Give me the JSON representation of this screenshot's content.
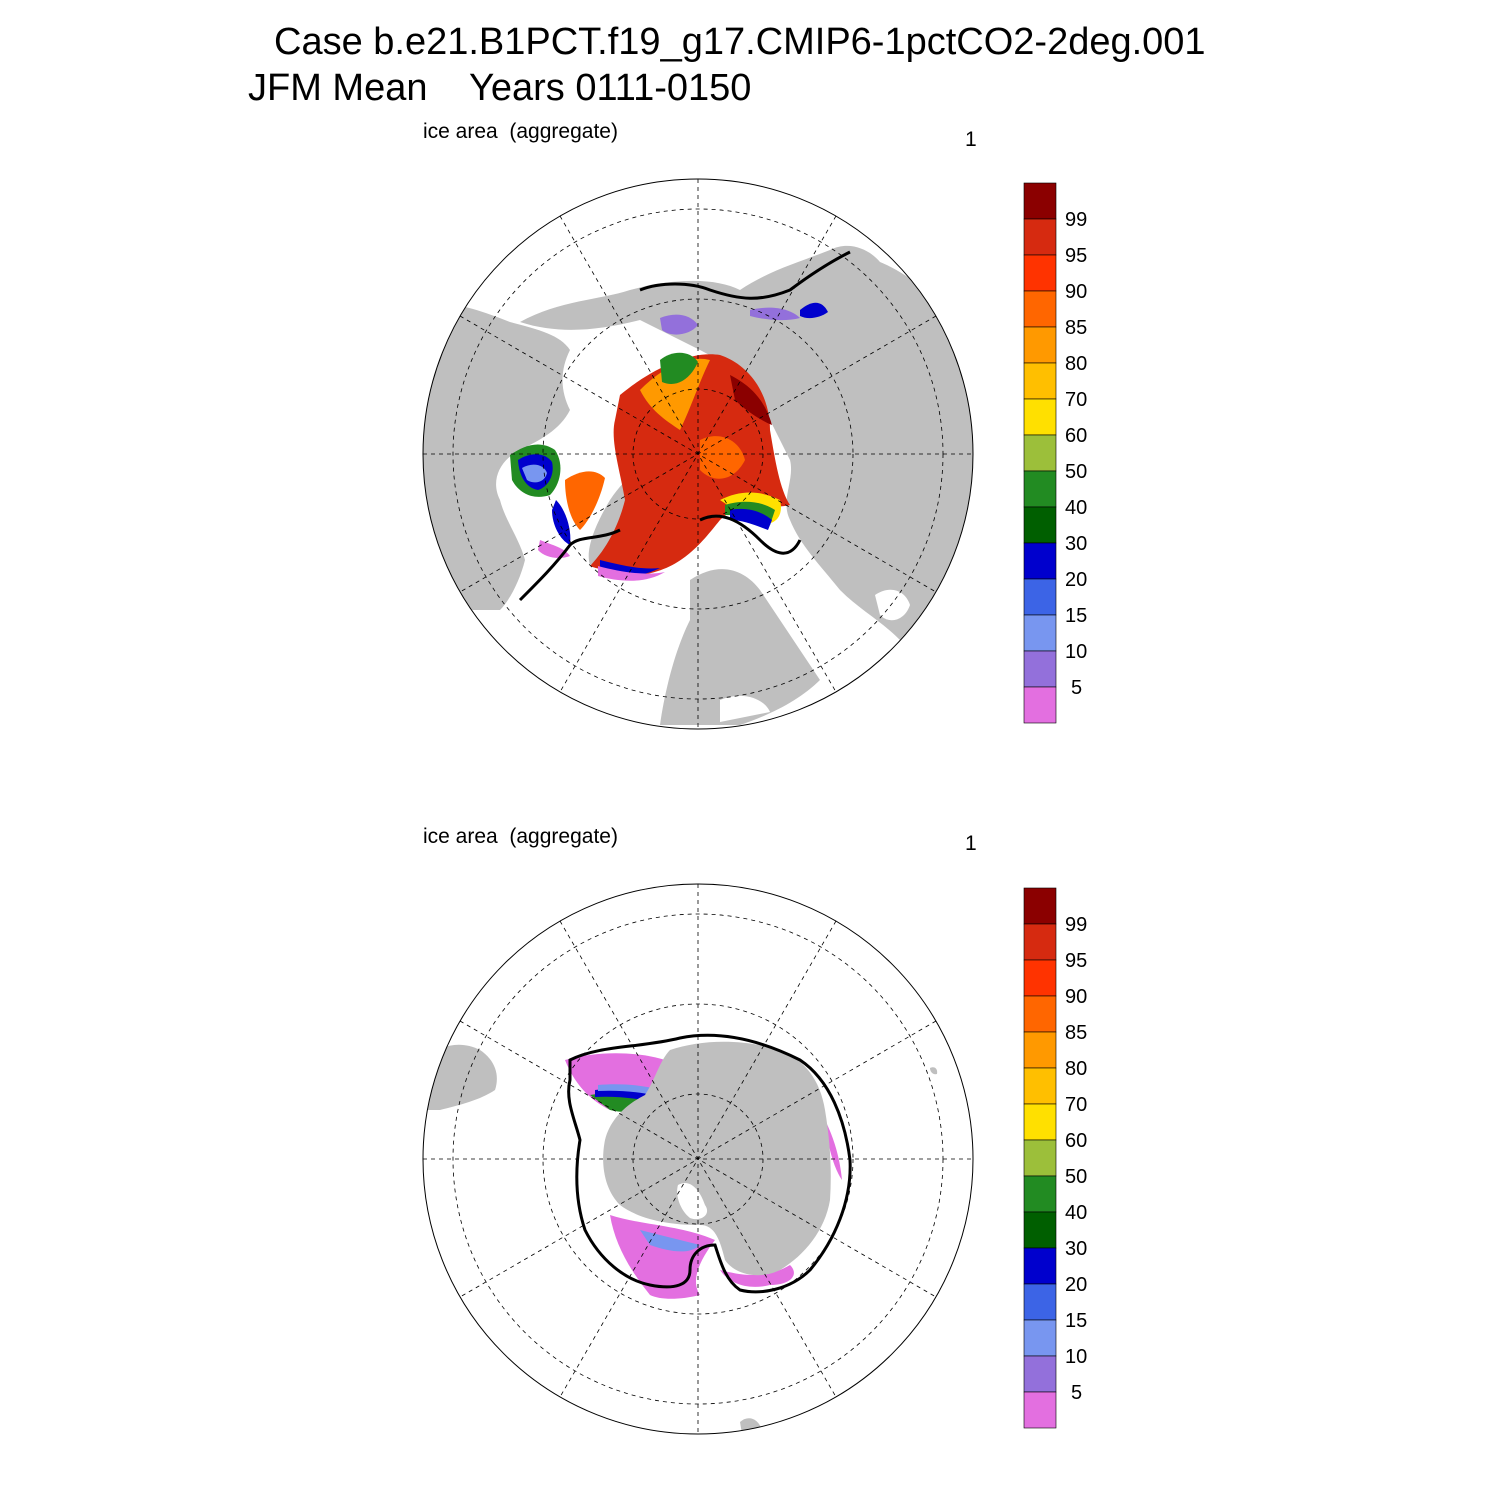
{
  "header": {
    "title_line1": "Case b.e21.B1PCT.f19_g17.CMIP6-1pctCO2-2deg.001",
    "title_line2": "JFM Mean    Years 0111-0150"
  },
  "panels": [
    {
      "id": "north",
      "label": "ice area  (aggregate)",
      "index_label": "1"
    },
    {
      "id": "south",
      "label": "ice area  (aggregate)",
      "index_label": "1"
    }
  ],
  "colorbar": {
    "tick_labels": [
      "99",
      "95",
      "90",
      "85",
      "80",
      "70",
      "60",
      "50",
      "40",
      "30",
      "20",
      "15",
      "10",
      "5"
    ],
    "colors": [
      "#8b0000",
      "#d62a10",
      "#ff3300",
      "#ff6600",
      "#ff9900",
      "#ffbf00",
      "#ffe000",
      "#9cbf3a",
      "#228b22",
      "#005f00",
      "#0000cd",
      "#3c64e6",
      "#7896f0",
      "#9370db",
      "#e36fe0"
    ]
  },
  "map_colors": {
    "land": "#bfbfbf",
    "ocean": "#ffffff",
    "ice_edge_contour": "#000000"
  }
}
